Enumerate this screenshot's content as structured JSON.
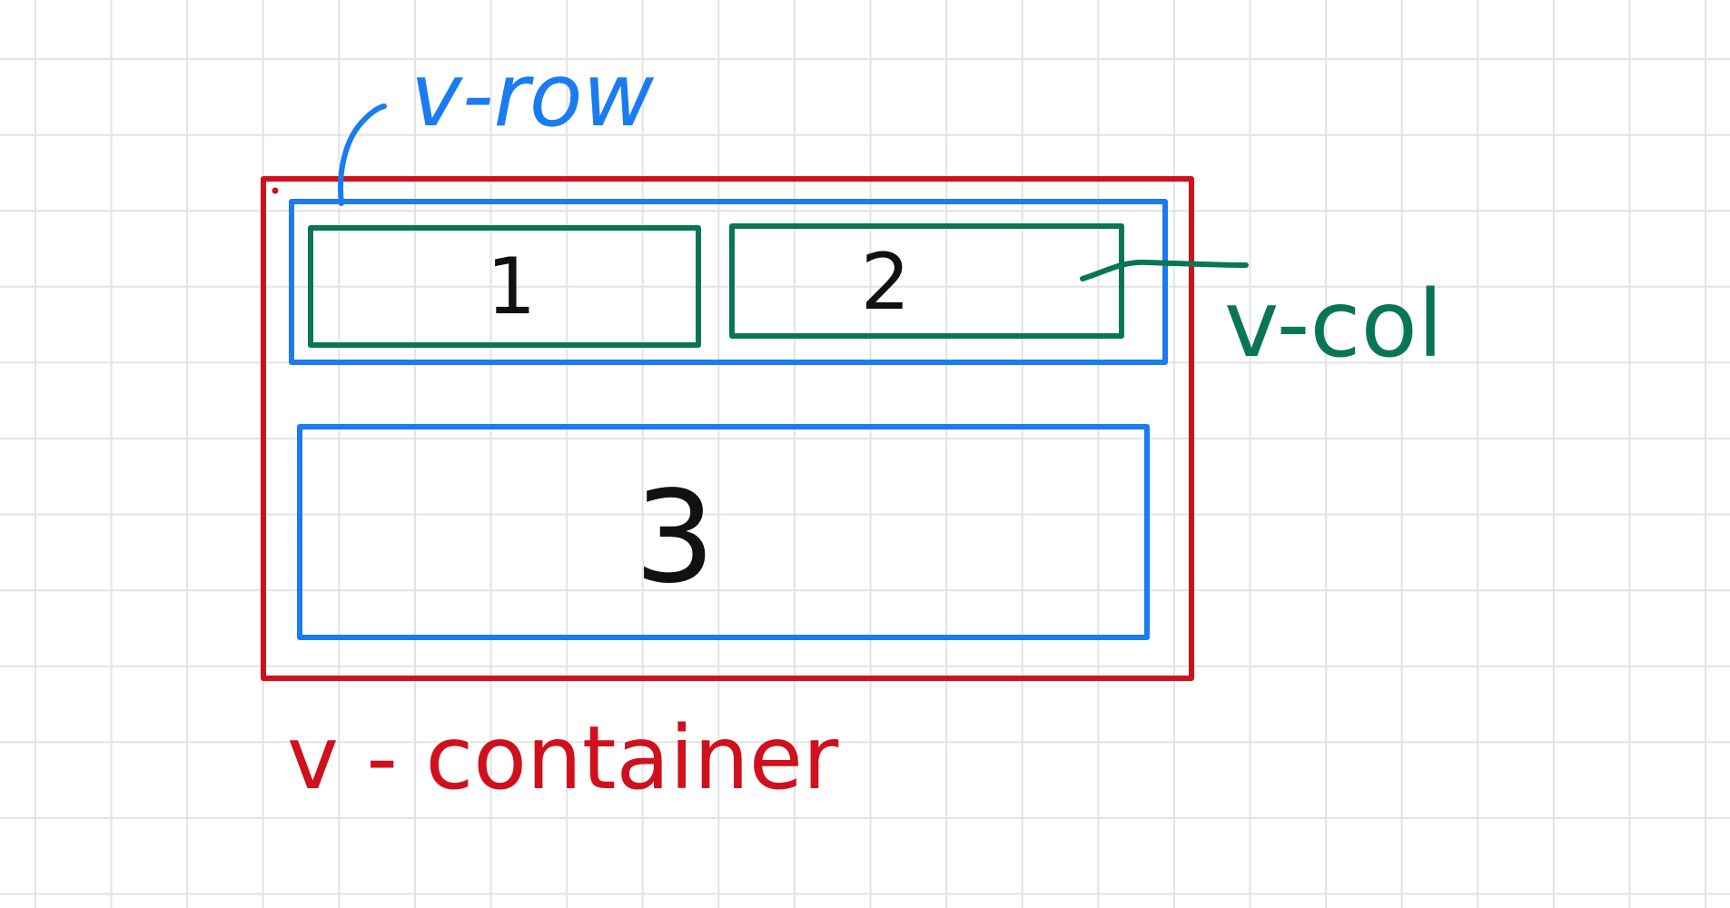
{
  "diagram": {
    "colors": {
      "container": "#d0101c",
      "row": "#1a7cf0",
      "col": "#087656",
      "cell_text": "#111111",
      "grid": "#e3e3e3",
      "background": "#ffffff"
    },
    "labels": {
      "row": "v-row",
      "col": "v-col",
      "container": "v - container"
    },
    "cells": [
      {
        "id": "cell-1",
        "text": "1"
      },
      {
        "id": "cell-2",
        "text": "2"
      },
      {
        "id": "cell-3",
        "text": "3"
      }
    ]
  }
}
